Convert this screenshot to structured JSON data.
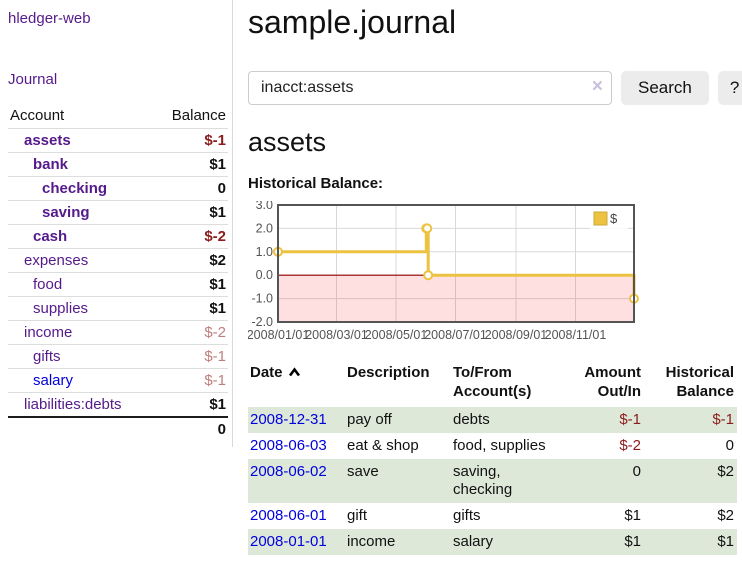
{
  "app": {
    "brand": "hledger-web",
    "nav_journal": "Journal"
  },
  "sidebar": {
    "columns": {
      "account": "Account",
      "balance": "Balance"
    },
    "accounts": [
      {
        "name": "assets",
        "depth": 1,
        "name_class": "bold",
        "balance": "$-1",
        "balance_class": "neg-strong"
      },
      {
        "name": "bank",
        "depth": 2,
        "name_class": "bold",
        "balance": "$1",
        "balance_class": "pos"
      },
      {
        "name": "checking",
        "depth": 3,
        "name_class": "bold",
        "balance": "0",
        "balance_class": "pos"
      },
      {
        "name": "saving",
        "depth": 3,
        "name_class": "bold",
        "balance": "$1",
        "balance_class": "pos"
      },
      {
        "name": "cash",
        "depth": 2,
        "name_class": "bold",
        "balance": "$-2",
        "balance_class": "neg-strong"
      },
      {
        "name": "expenses",
        "depth": 1,
        "name_class": "",
        "balance": "$2",
        "balance_class": "pos"
      },
      {
        "name": "food",
        "depth": 2,
        "name_class": "",
        "balance": "$1",
        "balance_class": "pos"
      },
      {
        "name": "supplies",
        "depth": 2,
        "name_class": "",
        "balance": "$1",
        "balance_class": "pos"
      },
      {
        "name": "income",
        "depth": 1,
        "name_class": "",
        "balance": "$-2",
        "balance_class": "neg-soft"
      },
      {
        "name": "gifts",
        "depth": 2,
        "name_class": "",
        "balance": "$-1",
        "balance_class": "neg-soft"
      },
      {
        "name": "salary",
        "depth": 2,
        "name_class": "blue",
        "balance": "$-1",
        "balance_class": "neg-soft"
      },
      {
        "name": "liabilities:debts",
        "depth": 1,
        "name_class": "",
        "balance": "$1",
        "balance_class": "pos"
      }
    ],
    "total": "0"
  },
  "header": {
    "title": "sample.journal"
  },
  "search": {
    "value": "inacct:assets",
    "clear_icon": "×",
    "button": "Search",
    "help_button": "?"
  },
  "account_page": {
    "heading": "assets",
    "chart_label": "Historical Balance:"
  },
  "chart_data": {
    "type": "line",
    "title": "Historical Balance:",
    "series": [
      {
        "name": "$",
        "color": "#edc240",
        "step": true,
        "points": [
          {
            "date": "2008-01-01",
            "day": 0,
            "value": 1
          },
          {
            "date": "2008-06-01",
            "day": 152,
            "value": 2
          },
          {
            "date": "2008-06-02",
            "day": 153,
            "value": 2
          },
          {
            "date": "2008-06-03",
            "day": 154,
            "value": 0
          },
          {
            "date": "2008-12-31",
            "day": 365,
            "value": -1
          }
        ]
      }
    ],
    "xlim_days": [
      0,
      365
    ],
    "ylim": [
      -2,
      3
    ],
    "yticks": [
      {
        "label": "3.0",
        "value": 3
      },
      {
        "label": "2.0",
        "value": 2
      },
      {
        "label": "1.0",
        "value": 1
      },
      {
        "label": "0.0",
        "value": 0
      },
      {
        "label": "-1.0",
        "value": -1
      },
      {
        "label": "-2.0",
        "value": -2
      }
    ],
    "xticks": [
      {
        "label": "2008/01/01",
        "day": 0
      },
      {
        "label": "2008/03/01",
        "day": 60
      },
      {
        "label": "2008/05/01",
        "day": 121
      },
      {
        "label": "2008/07/01",
        "day": 182
      },
      {
        "label": "2008/09/01",
        "day": 244
      },
      {
        "label": "2008/11/01",
        "day": 305
      }
    ],
    "legend": {
      "label": "$",
      "position": "top-right"
    },
    "grid": true,
    "colors": {
      "border": "#545454",
      "gridline": "#d8d8d8",
      "tick_label": "#545454",
      "negative_region": "rgba(255,0,0,0.12)",
      "zero_line": "#990000",
      "marker_fill": "#ffffff"
    }
  },
  "register": {
    "columns": {
      "date": "Date",
      "description": "Description",
      "accounts": "To/From Account(s)",
      "amount": "Amount Out/In",
      "balance": "Historical Balance"
    },
    "rows": [
      {
        "date": "2008-12-31",
        "description": "pay off",
        "accounts": "debts",
        "amount": "$-1",
        "amount_class": "neg",
        "balance": "$-1",
        "balance_class": "neg"
      },
      {
        "date": "2008-06-03",
        "description": "eat & shop",
        "accounts": "food, supplies",
        "amount": "$-2",
        "amount_class": "neg",
        "balance": "0",
        "balance_class": ""
      },
      {
        "date": "2008-06-02",
        "description": "save",
        "accounts": "saving, checking",
        "amount": "0",
        "amount_class": "",
        "balance": "$2",
        "balance_class": ""
      },
      {
        "date": "2008-06-01",
        "description": "gift",
        "accounts": "gifts",
        "amount": "$1",
        "amount_class": "",
        "balance": "$2",
        "balance_class": ""
      },
      {
        "date": "2008-01-01",
        "description": "income",
        "accounts": "salary",
        "amount": "$1",
        "amount_class": "",
        "balance": "$1",
        "balance_class": ""
      }
    ]
  }
}
